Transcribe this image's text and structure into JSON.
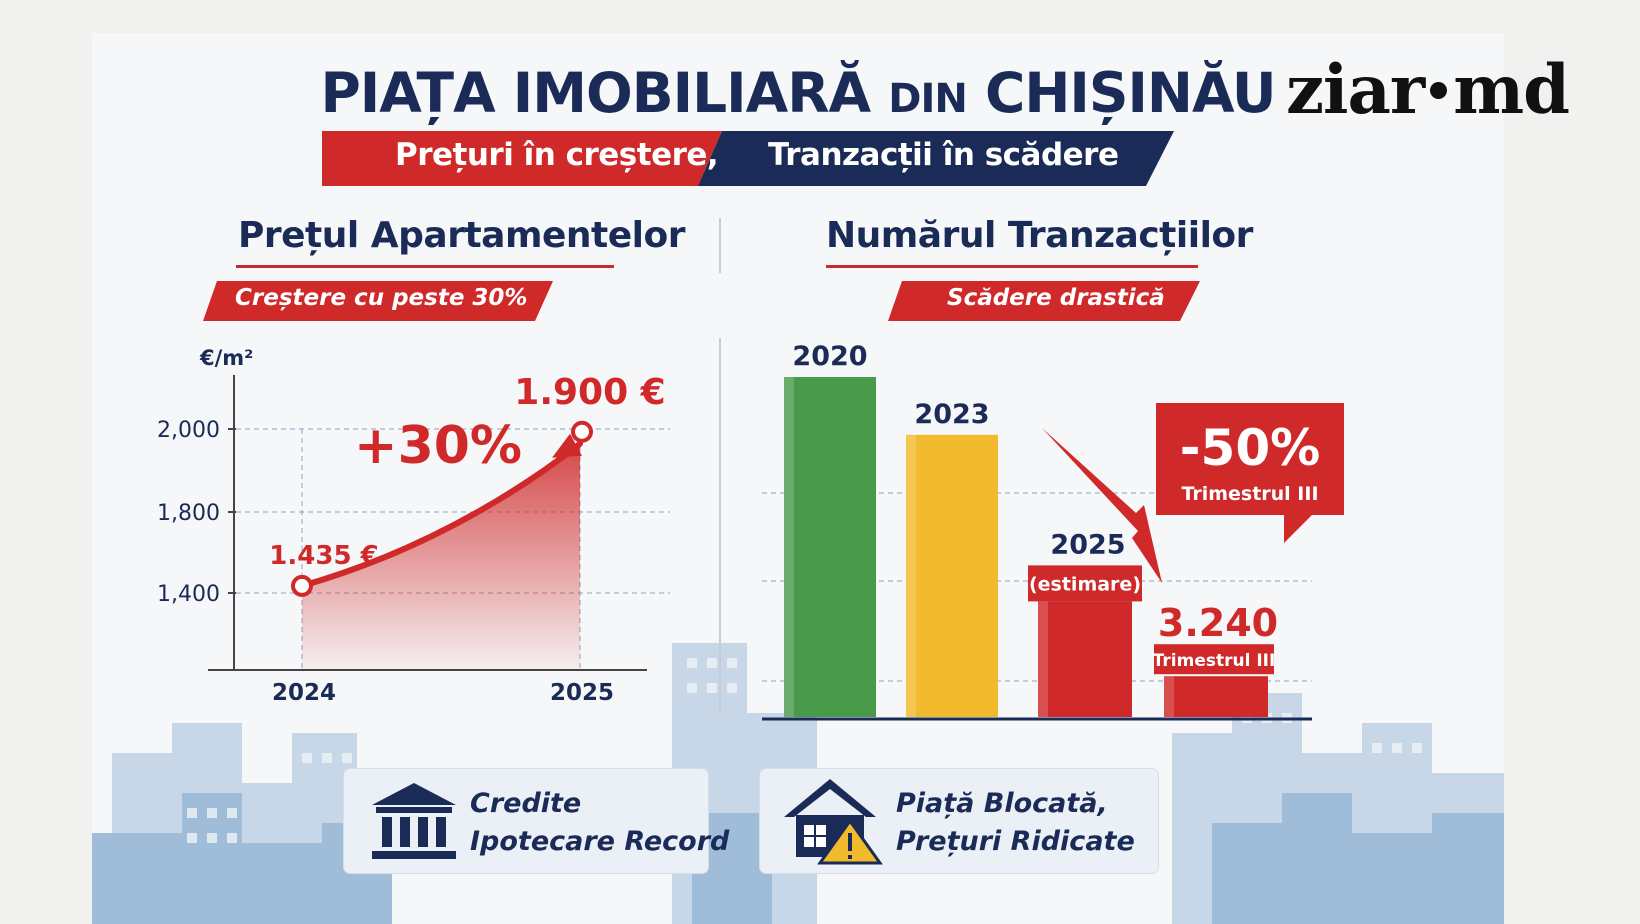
{
  "logo": {
    "part1": "ziar",
    "part2": "md"
  },
  "title": {
    "part1": "PIAȚA IMOBILIARĂ",
    "part2": "DIN",
    "part3": "CHIȘINĂU"
  },
  "banner": {
    "left": "Prețuri în creștere,",
    "right": "Tranzacții în scădere"
  },
  "colors": {
    "red": "#d0292a",
    "navy": "#1b2b57",
    "green": "#4a9a4c",
    "yellow": "#f2bb2e"
  },
  "icons": {
    "bank": "bank-icon",
    "house_warning": "house-warning-icon"
  },
  "info": {
    "left": {
      "line1": "Credite",
      "line2": "Ipotecare Record"
    },
    "right": {
      "line1": "Piață Blocată,",
      "line2": "Prețuri Ridicate"
    }
  },
  "chart_data": [
    {
      "type": "line",
      "title": "Prețul Apartamentelor",
      "subtitle": "Creștere cu peste 30%",
      "ylabel": "€/m²",
      "yticks": [
        "2,000",
        "1,800",
        "1,400"
      ],
      "x": [
        "2024",
        "2025"
      ],
      "series": [
        {
          "values": [
            1435,
            1900
          ]
        }
      ],
      "data_labels": [
        "1.435 €",
        "1.900 €"
      ],
      "annotation": "+30%",
      "grid": true
    },
    {
      "type": "bar",
      "title": "Numărul Tranzacțiilor",
      "subtitle": "Scădere drastică",
      "categories": [
        "2020",
        "2023",
        "2025",
        "3.240"
      ],
      "category_notes": [
        "",
        "",
        "(estimare)",
        "Trimestrul III"
      ],
      "values": [
        100,
        83,
        34,
        12
      ],
      "bar_colors": [
        "#4a9a4c",
        "#f2bb2e",
        "#d0292a",
        "#d0292a"
      ],
      "callout": {
        "value": "-50%",
        "label": "Trimestrul III"
      },
      "grid": true
    }
  ]
}
